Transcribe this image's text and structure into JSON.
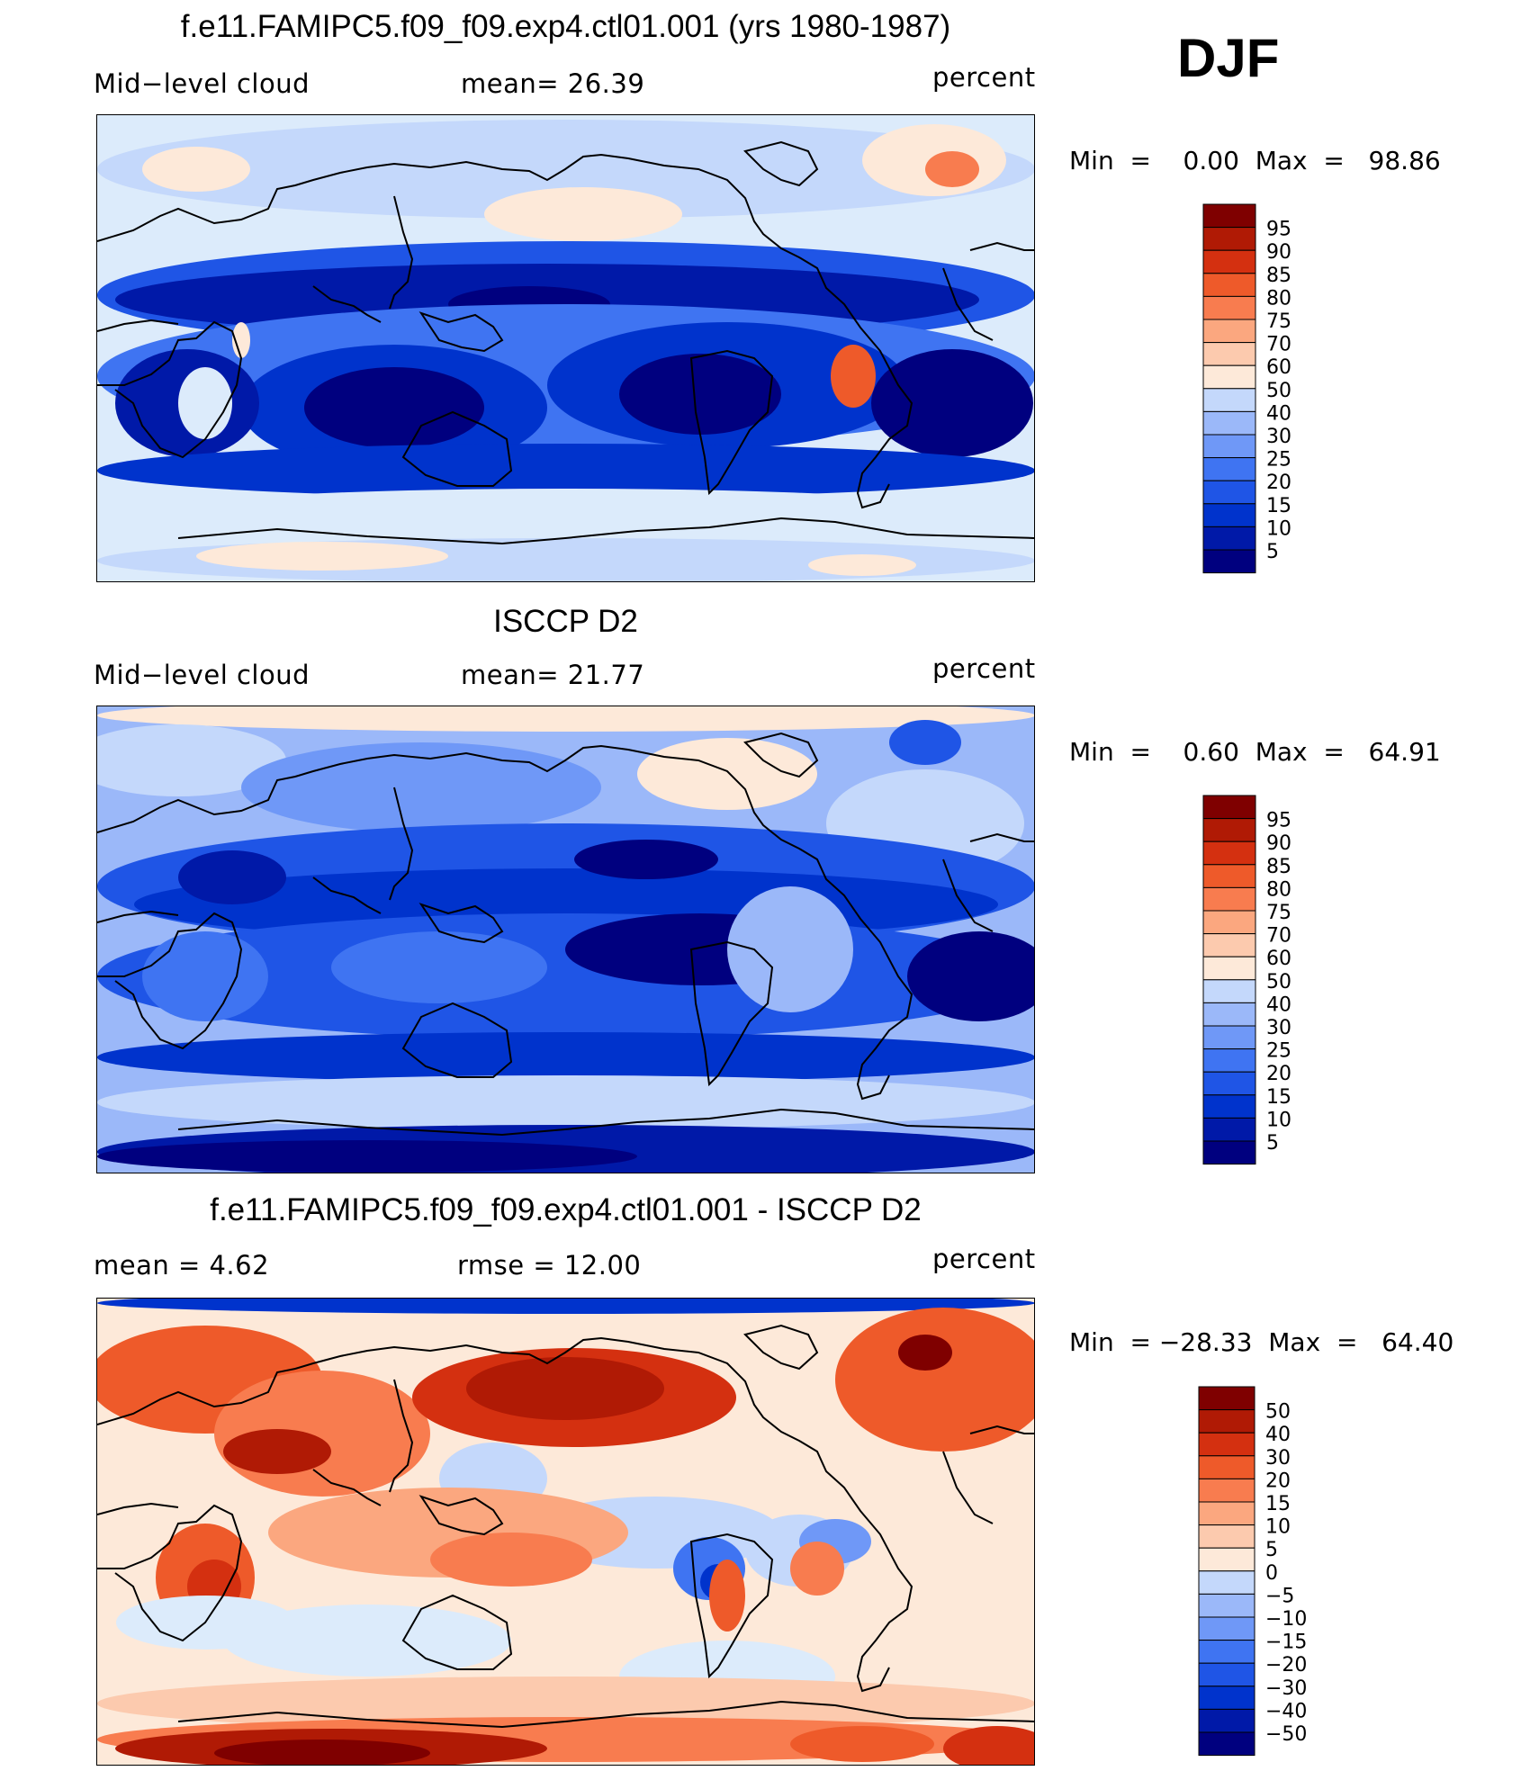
{
  "season": "DJF",
  "units": "percent",
  "colors": {
    "seq": [
      "#00007f",
      "#0019a8",
      "#0033cc",
      "#1f55e6",
      "#3f74f2",
      "#6f98f7",
      "#9bb8f9",
      "#c4d8fb",
      "#dcebfb",
      "#fde9d9",
      "#fccaae",
      "#fba77f",
      "#f87c4f",
      "#ee5a2a",
      "#d43010",
      "#b01a05",
      "#7f0000"
    ],
    "div": [
      "#00007f",
      "#0019a8",
      "#0033cc",
      "#1f55e6",
      "#3f74f2",
      "#6f98f7",
      "#9bb8f9",
      "#c4d8fb",
      "#dcebfb",
      "#fde9d9",
      "#fccaae",
      "#fba77f",
      "#f87c4f",
      "#ee5a2a",
      "#d43010",
      "#b01a05",
      "#7f0000"
    ]
  },
  "panels": [
    {
      "title": "f.e11.FAMIPC5.f09_f09.exp4.ctl01.001 (yrs 1980-1987)",
      "left_label": "Mid−level cloud",
      "mid_label": "mean=   26.39",
      "right_label": "percent",
      "minmax": "Min  =    0.00  Max  =   98.86",
      "colorbar_levels": [
        "95",
        "90",
        "85",
        "80",
        "75",
        "70",
        "60",
        "50",
        "40",
        "30",
        "25",
        "20",
        "15",
        "10",
        "5"
      ]
    },
    {
      "title": "ISCCP D2",
      "left_label": "Mid−level cloud",
      "mid_label": "mean=   21.77",
      "right_label": "percent",
      "minmax": "Min  =    0.60  Max  =   64.91",
      "colorbar_levels": [
        "95",
        "90",
        "85",
        "80",
        "75",
        "70",
        "60",
        "50",
        "40",
        "30",
        "25",
        "20",
        "15",
        "10",
        "5"
      ]
    },
    {
      "title": "f.e11.FAMIPC5.f09_f09.exp4.ctl01.001 - ISCCP D2",
      "left_label": "mean  =     4.62",
      "mid_label": "rmse  =    12.00",
      "right_label": "percent",
      "minmax": "Min  = −28.33  Max  =   64.40",
      "colorbar_levels": [
        "50",
        "40",
        "30",
        "20",
        "15",
        "10",
        "5",
        "0",
        "−5",
        "−10",
        "−15",
        "−20",
        "−30",
        "−40",
        "−50"
      ]
    }
  ]
}
